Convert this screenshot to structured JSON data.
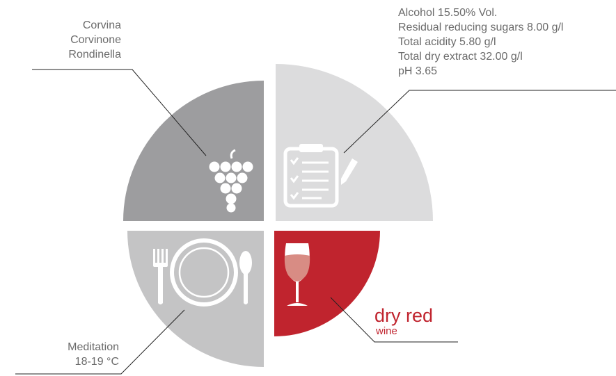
{
  "grapes": {
    "varieties": [
      "Corvina",
      "Corvinone",
      "Rondinella"
    ]
  },
  "analysis": {
    "lines": [
      "Alcohol 15.50% Vol.",
      "Residual reducing sugars 8.00 g/l",
      "Total acidity 5.80 g/l",
      "Total dry extract 32.00 g/l",
      "pH 3.65"
    ]
  },
  "pairing": {
    "lines": [
      "Meditation",
      "18-19 °C"
    ]
  },
  "wine_type": {
    "title": "dry red",
    "subtitle": "wine"
  },
  "colors": {
    "grapes_quadrant": "#9d9d9f",
    "analysis_quadrant": "#dcdcdd",
    "pairing_quadrant": "#c4c4c5",
    "type_quadrant": "#c0242e",
    "accent_text": "#c0242e",
    "icon": "#ffffff",
    "lines": "#222222"
  },
  "icons": {
    "grapes": "grape-cluster-icon",
    "analysis": "clipboard-pen-icon",
    "pairing": "plate-cutlery-icon",
    "type": "wine-glass-icon"
  }
}
